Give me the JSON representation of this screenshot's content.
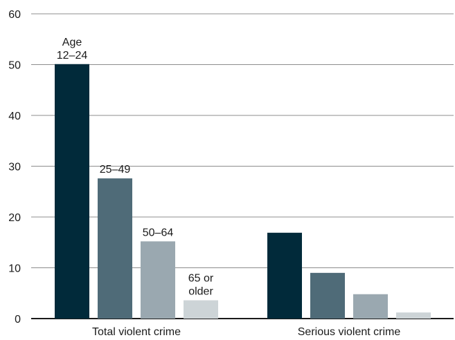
{
  "chart_data": {
    "type": "bar",
    "categories": [
      "Total violent crime",
      "Serious violent crime"
    ],
    "series": [
      {
        "name": "Age 12–24",
        "name_lines": [
          "Age",
          "12–24"
        ],
        "values": [
          50.1,
          16.9
        ],
        "color": "#012a3a"
      },
      {
        "name": "25–49",
        "name_lines": [
          "25–49"
        ],
        "values": [
          27.6,
          9.0
        ],
        "color": "#4f6b78"
      },
      {
        "name": "50–64",
        "name_lines": [
          "50–64"
        ],
        "values": [
          15.2,
          4.8
        ],
        "color": "#9aa8b0"
      },
      {
        "name": "65 or older",
        "name_lines": [
          "65 or",
          "older"
        ],
        "values": [
          3.6,
          1.2
        ],
        "color": "#cdd4d7"
      }
    ],
    "yticks": [
      0,
      10,
      20,
      30,
      40,
      50,
      60
    ],
    "ylim": [
      0,
      60
    ],
    "grid": true,
    "legend": "inline labels above bars of first category",
    "title": "",
    "xlabel": "",
    "ylabel": ""
  }
}
